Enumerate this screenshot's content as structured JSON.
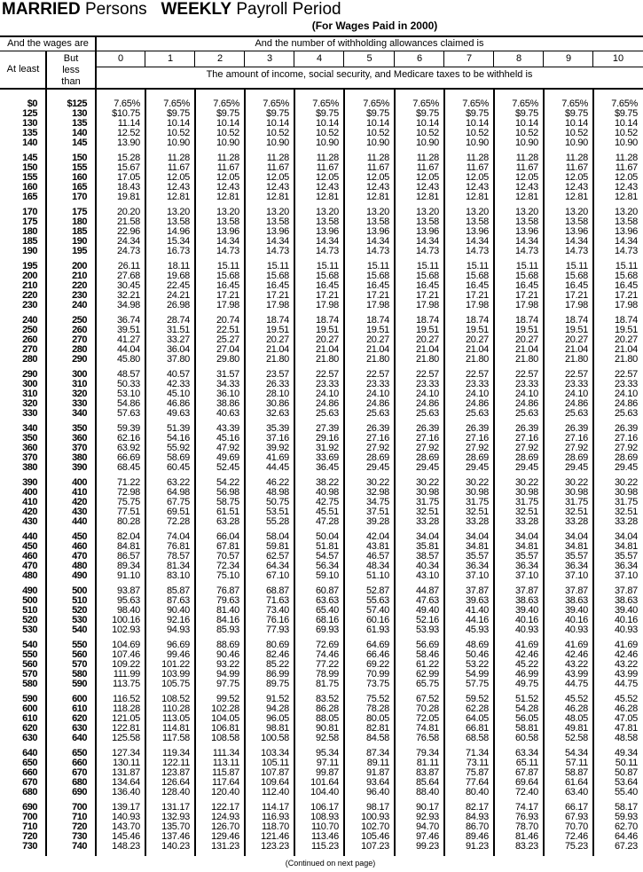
{
  "title": {
    "part1": "MARRIED",
    "part2": "Persons",
    "part3": "WEEKLY",
    "part4": "Payroll Period"
  },
  "subtitle": "(For Wages Paid in 2000)",
  "header": {
    "wages_are": "And the wages are",
    "allowances_claimed": "And the number of withholding allowances claimed is",
    "at_least": "At least",
    "but_less_than": "But less than",
    "allowances": [
      "0",
      "1",
      "2",
      "3",
      "4",
      "5",
      "6",
      "7",
      "8",
      "9",
      "10"
    ],
    "amount_withheld": "The amount of income, social security, and Medicare taxes to be withheld is"
  },
  "rows": [
    [
      "$0",
      "$125",
      "7.65%",
      "7.65%",
      "7.65%",
      "7.65%",
      "7.65%",
      "7.65%",
      "7.65%",
      "7.65%",
      "7.65%",
      "7.65%",
      "7.65%"
    ],
    [
      "125",
      "130",
      "$10.75",
      "$9.75",
      "$9.75",
      "$9.75",
      "$9.75",
      "$9.75",
      "$9.75",
      "$9.75",
      "$9.75",
      "$9.75",
      "$9.75"
    ],
    [
      "130",
      "135",
      "11.14",
      "10.14",
      "10.14",
      "10.14",
      "10.14",
      "10.14",
      "10.14",
      "10.14",
      "10.14",
      "10.14",
      "10.14"
    ],
    [
      "135",
      "140",
      "12.52",
      "10.52",
      "10.52",
      "10.52",
      "10.52",
      "10.52",
      "10.52",
      "10.52",
      "10.52",
      "10.52",
      "10.52"
    ],
    [
      "140",
      "145",
      "13.90",
      "10.90",
      "10.90",
      "10.90",
      "10.90",
      "10.90",
      "10.90",
      "10.90",
      "10.90",
      "10.90",
      "10.90"
    ],
    [
      "145",
      "150",
      "15.28",
      "11.28",
      "11.28",
      "11.28",
      "11.28",
      "11.28",
      "11.28",
      "11.28",
      "11.28",
      "11.28",
      "11.28"
    ],
    [
      "150",
      "155",
      "15.67",
      "11.67",
      "11.67",
      "11.67",
      "11.67",
      "11.67",
      "11.67",
      "11.67",
      "11.67",
      "11.67",
      "11.67"
    ],
    [
      "155",
      "160",
      "17.05",
      "12.05",
      "12.05",
      "12.05",
      "12.05",
      "12.05",
      "12.05",
      "12.05",
      "12.05",
      "12.05",
      "12.05"
    ],
    [
      "160",
      "165",
      "18.43",
      "12.43",
      "12.43",
      "12.43",
      "12.43",
      "12.43",
      "12.43",
      "12.43",
      "12.43",
      "12.43",
      "12.43"
    ],
    [
      "165",
      "170",
      "19.81",
      "12.81",
      "12.81",
      "12.81",
      "12.81",
      "12.81",
      "12.81",
      "12.81",
      "12.81",
      "12.81",
      "12.81"
    ],
    [
      "170",
      "175",
      "20.20",
      "13.20",
      "13.20",
      "13.20",
      "13.20",
      "13.20",
      "13.20",
      "13.20",
      "13.20",
      "13.20",
      "13.20"
    ],
    [
      "175",
      "180",
      "21.58",
      "13.58",
      "13.58",
      "13.58",
      "13.58",
      "13.58",
      "13.58",
      "13.58",
      "13.58",
      "13.58",
      "13.58"
    ],
    [
      "180",
      "185",
      "22.96",
      "14.96",
      "13.96",
      "13.96",
      "13.96",
      "13.96",
      "13.96",
      "13.96",
      "13.96",
      "13.96",
      "13.96"
    ],
    [
      "185",
      "190",
      "24.34",
      "15.34",
      "14.34",
      "14.34",
      "14.34",
      "14.34",
      "14.34",
      "14.34",
      "14.34",
      "14.34",
      "14.34"
    ],
    [
      "190",
      "195",
      "24.73",
      "16.73",
      "14.73",
      "14.73",
      "14.73",
      "14.73",
      "14.73",
      "14.73",
      "14.73",
      "14.73",
      "14.73"
    ],
    [
      "195",
      "200",
      "26.11",
      "18.11",
      "15.11",
      "15.11",
      "15.11",
      "15.11",
      "15.11",
      "15.11",
      "15.11",
      "15.11",
      "15.11"
    ],
    [
      "200",
      "210",
      "27.68",
      "19.68",
      "15.68",
      "15.68",
      "15.68",
      "15.68",
      "15.68",
      "15.68",
      "15.68",
      "15.68",
      "15.68"
    ],
    [
      "210",
      "220",
      "30.45",
      "22.45",
      "16.45",
      "16.45",
      "16.45",
      "16.45",
      "16.45",
      "16.45",
      "16.45",
      "16.45",
      "16.45"
    ],
    [
      "220",
      "230",
      "32.21",
      "24.21",
      "17.21",
      "17.21",
      "17.21",
      "17.21",
      "17.21",
      "17.21",
      "17.21",
      "17.21",
      "17.21"
    ],
    [
      "230",
      "240",
      "34.98",
      "26.98",
      "17.98",
      "17.98",
      "17.98",
      "17.98",
      "17.98",
      "17.98",
      "17.98",
      "17.98",
      "17.98"
    ],
    [
      "240",
      "250",
      "36.74",
      "28.74",
      "20.74",
      "18.74",
      "18.74",
      "18.74",
      "18.74",
      "18.74",
      "18.74",
      "18.74",
      "18.74"
    ],
    [
      "250",
      "260",
      "39.51",
      "31.51",
      "22.51",
      "19.51",
      "19.51",
      "19.51",
      "19.51",
      "19.51",
      "19.51",
      "19.51",
      "19.51"
    ],
    [
      "260",
      "270",
      "41.27",
      "33.27",
      "25.27",
      "20.27",
      "20.27",
      "20.27",
      "20.27",
      "20.27",
      "20.27",
      "20.27",
      "20.27"
    ],
    [
      "270",
      "280",
      "44.04",
      "36.04",
      "27.04",
      "21.04",
      "21.04",
      "21.04",
      "21.04",
      "21.04",
      "21.04",
      "21.04",
      "21.04"
    ],
    [
      "280",
      "290",
      "45.80",
      "37.80",
      "29.80",
      "21.80",
      "21.80",
      "21.80",
      "21.80",
      "21.80",
      "21.80",
      "21.80",
      "21.80"
    ],
    [
      "290",
      "300",
      "48.57",
      "40.57",
      "31.57",
      "23.57",
      "22.57",
      "22.57",
      "22.57",
      "22.57",
      "22.57",
      "22.57",
      "22.57"
    ],
    [
      "300",
      "310",
      "50.33",
      "42.33",
      "34.33",
      "26.33",
      "23.33",
      "23.33",
      "23.33",
      "23.33",
      "23.33",
      "23.33",
      "23.33"
    ],
    [
      "310",
      "320",
      "53.10",
      "45.10",
      "36.10",
      "28.10",
      "24.10",
      "24.10",
      "24.10",
      "24.10",
      "24.10",
      "24.10",
      "24.10"
    ],
    [
      "320",
      "330",
      "54.86",
      "46.86",
      "38.86",
      "30.86",
      "24.86",
      "24.86",
      "24.86",
      "24.86",
      "24.86",
      "24.86",
      "24.86"
    ],
    [
      "330",
      "340",
      "57.63",
      "49.63",
      "40.63",
      "32.63",
      "25.63",
      "25.63",
      "25.63",
      "25.63",
      "25.63",
      "25.63",
      "25.63"
    ],
    [
      "340",
      "350",
      "59.39",
      "51.39",
      "43.39",
      "35.39",
      "27.39",
      "26.39",
      "26.39",
      "26.39",
      "26.39",
      "26.39",
      "26.39"
    ],
    [
      "350",
      "360",
      "62.16",
      "54.16",
      "45.16",
      "37.16",
      "29.16",
      "27.16",
      "27.16",
      "27.16",
      "27.16",
      "27.16",
      "27.16"
    ],
    [
      "360",
      "370",
      "63.92",
      "55.92",
      "47.92",
      "39.92",
      "31.92",
      "27.92",
      "27.92",
      "27.92",
      "27.92",
      "27.92",
      "27.92"
    ],
    [
      "370",
      "380",
      "66.69",
      "58.69",
      "49.69",
      "41.69",
      "33.69",
      "28.69",
      "28.69",
      "28.69",
      "28.69",
      "28.69",
      "28.69"
    ],
    [
      "380",
      "390",
      "68.45",
      "60.45",
      "52.45",
      "44.45",
      "36.45",
      "29.45",
      "29.45",
      "29.45",
      "29.45",
      "29.45",
      "29.45"
    ],
    [
      "390",
      "400",
      "71.22",
      "63.22",
      "54.22",
      "46.22",
      "38.22",
      "30.22",
      "30.22",
      "30.22",
      "30.22",
      "30.22",
      "30.22"
    ],
    [
      "400",
      "410",
      "72.98",
      "64.98",
      "56.98",
      "48.98",
      "40.98",
      "32.98",
      "30.98",
      "30.98",
      "30.98",
      "30.98",
      "30.98"
    ],
    [
      "410",
      "420",
      "75.75",
      "67.75",
      "58.75",
      "50.75",
      "42.75",
      "34.75",
      "31.75",
      "31.75",
      "31.75",
      "31.75",
      "31.75"
    ],
    [
      "420",
      "430",
      "77.51",
      "69.51",
      "61.51",
      "53.51",
      "45.51",
      "37.51",
      "32.51",
      "32.51",
      "32.51",
      "32.51",
      "32.51"
    ],
    [
      "430",
      "440",
      "80.28",
      "72.28",
      "63.28",
      "55.28",
      "47.28",
      "39.28",
      "33.28",
      "33.28",
      "33.28",
      "33.28",
      "33.28"
    ],
    [
      "440",
      "450",
      "82.04",
      "74.04",
      "66.04",
      "58.04",
      "50.04",
      "42.04",
      "34.04",
      "34.04",
      "34.04",
      "34.04",
      "34.04"
    ],
    [
      "450",
      "460",
      "84.81",
      "76.81",
      "67.81",
      "59.81",
      "51.81",
      "43.81",
      "35.81",
      "34.81",
      "34.81",
      "34.81",
      "34.81"
    ],
    [
      "460",
      "470",
      "86.57",
      "78.57",
      "70.57",
      "62.57",
      "54.57",
      "46.57",
      "38.57",
      "35.57",
      "35.57",
      "35.57",
      "35.57"
    ],
    [
      "470",
      "480",
      "89.34",
      "81.34",
      "72.34",
      "64.34",
      "56.34",
      "48.34",
      "40.34",
      "36.34",
      "36.34",
      "36.34",
      "36.34"
    ],
    [
      "480",
      "490",
      "91.10",
      "83.10",
      "75.10",
      "67.10",
      "59.10",
      "51.10",
      "43.10",
      "37.10",
      "37.10",
      "37.10",
      "37.10"
    ],
    [
      "490",
      "500",
      "93.87",
      "85.87",
      "76.87",
      "68.87",
      "60.87",
      "52.87",
      "44.87",
      "37.87",
      "37.87",
      "37.87",
      "37.87"
    ],
    [
      "500",
      "510",
      "95.63",
      "87.63",
      "79.63",
      "71.63",
      "63.63",
      "55.63",
      "47.63",
      "39.63",
      "38.63",
      "38.63",
      "38.63"
    ],
    [
      "510",
      "520",
      "98.40",
      "90.40",
      "81.40",
      "73.40",
      "65.40",
      "57.40",
      "49.40",
      "41.40",
      "39.40",
      "39.40",
      "39.40"
    ],
    [
      "520",
      "530",
      "100.16",
      "92.16",
      "84.16",
      "76.16",
      "68.16",
      "60.16",
      "52.16",
      "44.16",
      "40.16",
      "40.16",
      "40.16"
    ],
    [
      "530",
      "540",
      "102.93",
      "94.93",
      "85.93",
      "77.93",
      "69.93",
      "61.93",
      "53.93",
      "45.93",
      "40.93",
      "40.93",
      "40.93"
    ],
    [
      "540",
      "550",
      "104.69",
      "96.69",
      "88.69",
      "80.69",
      "72.69",
      "64.69",
      "56.69",
      "48.69",
      "41.69",
      "41.69",
      "41.69"
    ],
    [
      "550",
      "560",
      "107.46",
      "99.46",
      "90.46",
      "82.46",
      "74.46",
      "66.46",
      "58.46",
      "50.46",
      "42.46",
      "42.46",
      "42.46"
    ],
    [
      "560",
      "570",
      "109.22",
      "101.22",
      "93.22",
      "85.22",
      "77.22",
      "69.22",
      "61.22",
      "53.22",
      "45.22",
      "43.22",
      "43.22"
    ],
    [
      "570",
      "580",
      "111.99",
      "103.99",
      "94.99",
      "86.99",
      "78.99",
      "70.99",
      "62.99",
      "54.99",
      "46.99",
      "43.99",
      "43.99"
    ],
    [
      "580",
      "590",
      "113.75",
      "105.75",
      "97.75",
      "89.75",
      "81.75",
      "73.75",
      "65.75",
      "57.75",
      "49.75",
      "44.75",
      "44.75"
    ],
    [
      "590",
      "600",
      "116.52",
      "108.52",
      "99.52",
      "91.52",
      "83.52",
      "75.52",
      "67.52",
      "59.52",
      "51.52",
      "45.52",
      "45.52"
    ],
    [
      "600",
      "610",
      "118.28",
      "110.28",
      "102.28",
      "94.28",
      "86.28",
      "78.28",
      "70.28",
      "62.28",
      "54.28",
      "46.28",
      "46.28"
    ],
    [
      "610",
      "620",
      "121.05",
      "113.05",
      "104.05",
      "96.05",
      "88.05",
      "80.05",
      "72.05",
      "64.05",
      "56.05",
      "48.05",
      "47.05"
    ],
    [
      "620",
      "630",
      "122.81",
      "114.81",
      "106.81",
      "98.81",
      "90.81",
      "82.81",
      "74.81",
      "66.81",
      "58.81",
      "49.81",
      "47.81"
    ],
    [
      "630",
      "640",
      "125.58",
      "117.58",
      "108.58",
      "100.58",
      "92.58",
      "84.58",
      "76.58",
      "68.58",
      "60.58",
      "52.58",
      "48.58"
    ],
    [
      "640",
      "650",
      "127.34",
      "119.34",
      "111.34",
      "103.34",
      "95.34",
      "87.34",
      "79.34",
      "71.34",
      "63.34",
      "54.34",
      "49.34"
    ],
    [
      "650",
      "660",
      "130.11",
      "122.11",
      "113.11",
      "105.11",
      "97.11",
      "89.11",
      "81.11",
      "73.11",
      "65.11",
      "57.11",
      "50.11"
    ],
    [
      "660",
      "670",
      "131.87",
      "123.87",
      "115.87",
      "107.87",
      "99.87",
      "91.87",
      "83.87",
      "75.87",
      "67.87",
      "58.87",
      "50.87"
    ],
    [
      "670",
      "680",
      "134.64",
      "126.64",
      "117.64",
      "109.64",
      "101.64",
      "93.64",
      "85.64",
      "77.64",
      "69.64",
      "61.64",
      "53.64"
    ],
    [
      "680",
      "690",
      "136.40",
      "128.40",
      "120.40",
      "112.40",
      "104.40",
      "96.40",
      "88.40",
      "80.40",
      "72.40",
      "63.40",
      "55.40"
    ],
    [
      "690",
      "700",
      "139.17",
      "131.17",
      "122.17",
      "114.17",
      "106.17",
      "98.17",
      "90.17",
      "82.17",
      "74.17",
      "66.17",
      "58.17"
    ],
    [
      "700",
      "710",
      "140.93",
      "132.93",
      "124.93",
      "116.93",
      "108.93",
      "100.93",
      "92.93",
      "84.93",
      "76.93",
      "67.93",
      "59.93"
    ],
    [
      "710",
      "720",
      "143.70",
      "135.70",
      "126.70",
      "118.70",
      "110.70",
      "102.70",
      "94.70",
      "86.70",
      "78.70",
      "70.70",
      "62.70"
    ],
    [
      "720",
      "730",
      "145.46",
      "137.46",
      "129.46",
      "121.46",
      "113.46",
      "105.46",
      "97.46",
      "89.46",
      "81.46",
      "72.46",
      "64.46"
    ],
    [
      "730",
      "740",
      "148.23",
      "140.23",
      "131.23",
      "123.23",
      "115.23",
      "107.23",
      "99.23",
      "91.23",
      "83.23",
      "75.23",
      "67.23"
    ]
  ],
  "footer": "(Continued on next page)"
}
